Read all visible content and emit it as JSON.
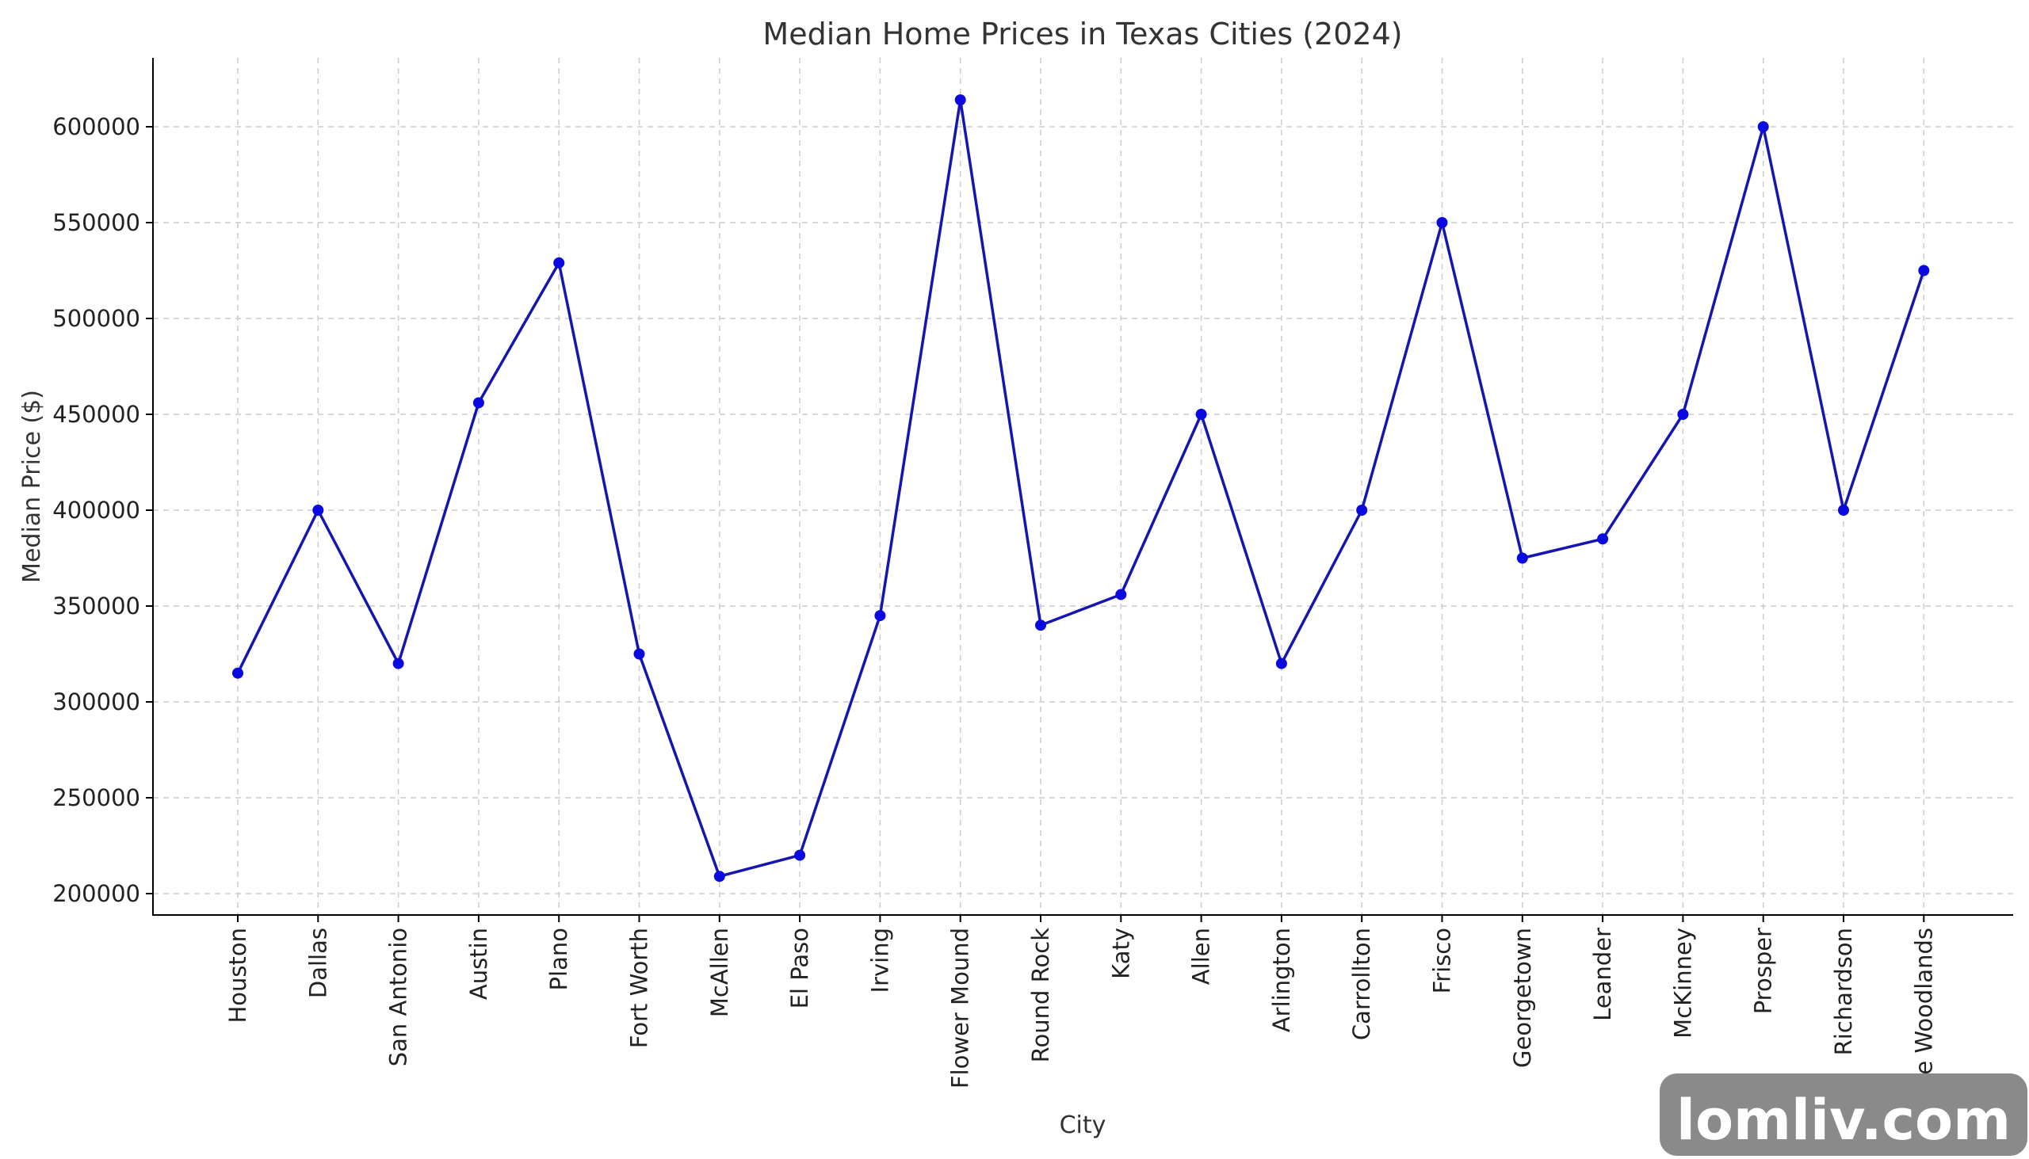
{
  "chart_data": {
    "type": "line",
    "title": "Median Home Prices in Texas Cities (2024)",
    "xlabel": "City",
    "ylabel": "Median Price ($)",
    "categories": [
      "Houston",
      "Dallas",
      "San Antonio",
      "Austin",
      "Plano",
      "Fort Worth",
      "McAllen",
      "El Paso",
      "Irving",
      "Flower Mound",
      "Round Rock",
      "Katy",
      "Allen",
      "Arlington",
      "Carrollton",
      "Frisco",
      "Georgetown",
      "Leander",
      "McKinney",
      "Prosper",
      "Richardson",
      "The Woodlands"
    ],
    "series": [
      {
        "values": [
          315000,
          400000,
          320000,
          456000,
          529000,
          325000,
          209000,
          220000,
          345000,
          614000,
          340000,
          356000,
          450000,
          320000,
          400000,
          550000,
          375000,
          385000,
          450000,
          600000,
          400000,
          525000
        ]
      }
    ],
    "yticks": [
      200000,
      250000,
      300000,
      350000,
      400000,
      450000,
      500000,
      550000,
      600000
    ],
    "ylim": [
      189000,
      635000
    ],
    "grid": true,
    "color": "#1515b0",
    "marker_color": "#0a0ae0"
  },
  "watermark": {
    "text": "lomliv.com"
  }
}
